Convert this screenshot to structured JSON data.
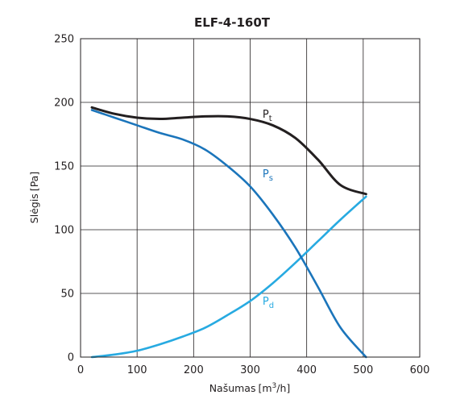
{
  "chart_data": {
    "type": "line",
    "title": "ELF-4-160T",
    "xlabel": {
      "text": "Našumas",
      "unit_prefix": "[m",
      "unit_sup": "3",
      "unit_suffix": "/h]"
    },
    "ylabel": {
      "text": "Slėgis",
      "unit": "[Pa]"
    },
    "xlim": [
      0,
      600
    ],
    "ylim": [
      0,
      250
    ],
    "xticks": [
      0,
      100,
      200,
      300,
      400,
      500,
      600
    ],
    "yticks": [
      0,
      50,
      100,
      150,
      200,
      250
    ],
    "grid": true,
    "series": [
      {
        "name_main": "P",
        "name_sub": "t",
        "color": "#231f20",
        "label_at": [
          322,
          188
        ],
        "x": [
          20,
          60,
          100,
          140,
          180,
          220,
          260,
          300,
          340,
          380,
          420,
          460,
          505
        ],
        "y": [
          196,
          191,
          188,
          187,
          188,
          189,
          189,
          187,
          182,
          172,
          155,
          135,
          128
        ]
      },
      {
        "name_main": "P",
        "name_sub": "s",
        "color": "#1b75bb",
        "label_at": [
          322,
          141
        ],
        "x": [
          20,
          60,
          100,
          140,
          180,
          220,
          260,
          300,
          340,
          380,
          420,
          460,
          505
        ],
        "y": [
          194,
          188,
          182,
          176,
          171,
          163,
          150,
          134,
          112,
          86,
          55,
          23,
          0
        ]
      },
      {
        "name_main": "P",
        "name_sub": "d",
        "color": "#27aae1",
        "label_at": [
          322,
          41
        ],
        "x": [
          20,
          60,
          100,
          140,
          180,
          220,
          260,
          300,
          340,
          380,
          420,
          460,
          505
        ],
        "y": [
          0,
          2,
          5,
          10,
          16,
          23,
          33,
          44,
          58,
          74,
          91,
          108,
          126
        ]
      }
    ]
  }
}
